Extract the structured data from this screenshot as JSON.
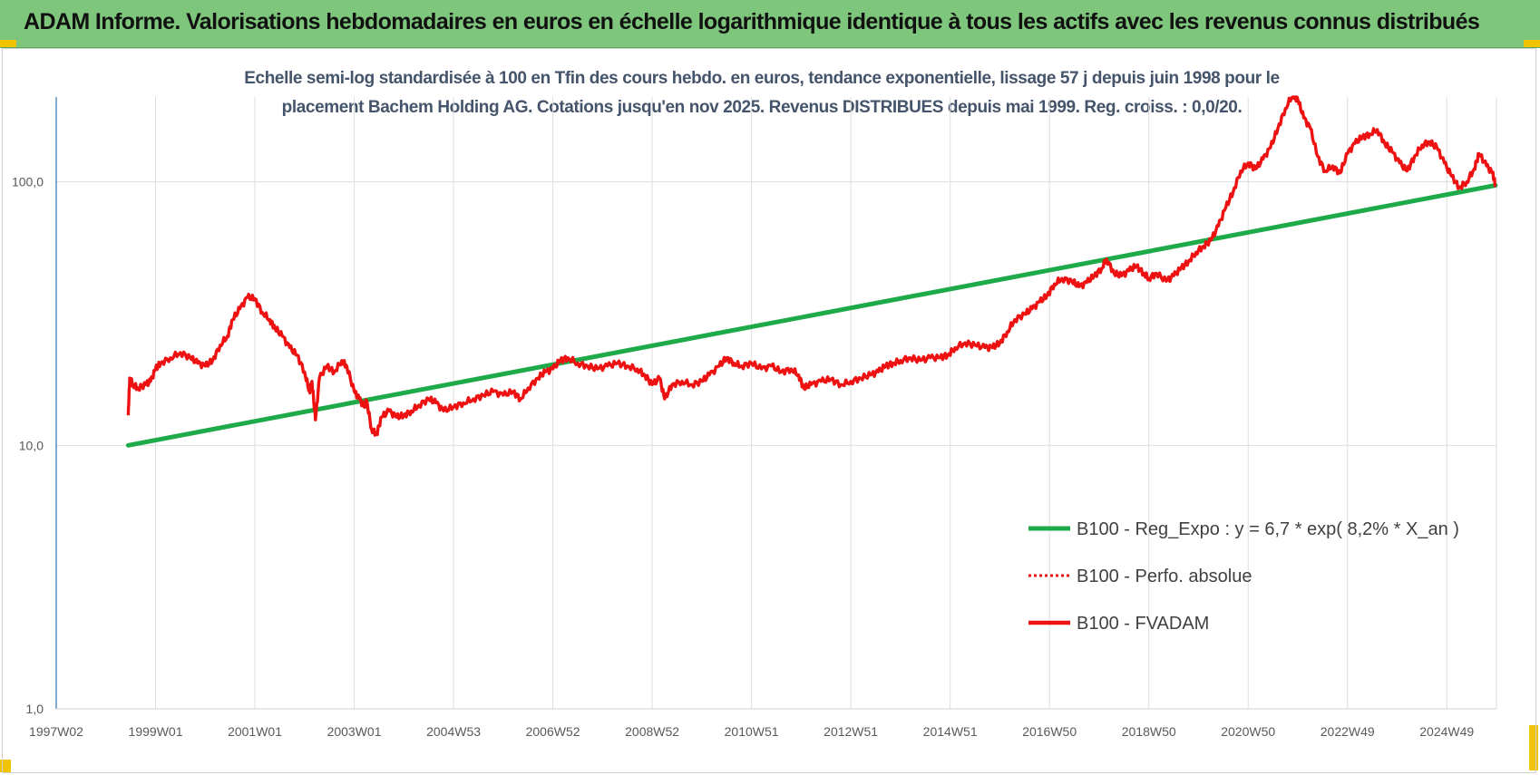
{
  "banner": {
    "title": "ADAM Informe. Valorisations hebdomadaires en euros en échelle logarithmique identique à tous les actifs avec les revenus connus distribués"
  },
  "colors": {
    "banner": "#7dc67b",
    "corner": "#f2c400",
    "trend": "#1faa4a",
    "price": "#ee1111",
    "title_text": "#44546a"
  },
  "chart_data": {
    "type": "line",
    "title_line1": "Echelle semi-log standardisée à 100 en Tfin des cours hebdo. en euros, tendance exponentielle, lissage 57 j depuis juin 1998 pour le",
    "title_line2": "placement Bachem Holding AG. Cotations jusqu'en nov 2025. Revenus DISTRIBUES depuis mai 1999. Reg. croiss. : 0,0/20.",
    "y_scale": "log",
    "ylim": [
      1,
      210
    ],
    "y_ticks": [
      {
        "value": 1,
        "label": "1,0"
      },
      {
        "value": 10,
        "label": "10,0"
      },
      {
        "value": 100,
        "label": "100,0"
      }
    ],
    "x_range": [
      1997.0,
      2026.0
    ],
    "x_ticks": [
      {
        "x": 1997.0,
        "label": "1997W02"
      },
      {
        "x": 1999.0,
        "label": "1999W01"
      },
      {
        "x": 2001.0,
        "label": "2001W01"
      },
      {
        "x": 2003.0,
        "label": "2003W01"
      },
      {
        "x": 2005.0,
        "label": "2004W53"
      },
      {
        "x": 2007.0,
        "label": "2006W52"
      },
      {
        "x": 2009.0,
        "label": "2008W52"
      },
      {
        "x": 2011.0,
        "label": "2010W51"
      },
      {
        "x": 2013.0,
        "label": "2012W51"
      },
      {
        "x": 2015.0,
        "label": "2014W51"
      },
      {
        "x": 2017.0,
        "label": "2016W50"
      },
      {
        "x": 2019.0,
        "label": "2018W50"
      },
      {
        "x": 2021.0,
        "label": "2020W50"
      },
      {
        "x": 2023.0,
        "label": "2022W49"
      },
      {
        "x": 2025.0,
        "label": "2024W49"
      }
    ],
    "grid": true,
    "legend_position": "right-middle",
    "series": [
      {
        "name": "B100 - Reg_Expo : y = 6,7 * exp( 8,2% *  X_an )",
        "style": "solid-thick",
        "color": "#1faa4a",
        "points": [
          [
            1998.45,
            10.0
          ],
          [
            2025.98,
            97.0
          ]
        ]
      },
      {
        "name": "B100 - Perfo. absolue",
        "style": "dotted",
        "color": "#ee1111",
        "points": []
      },
      {
        "name": "B100 - FVADAM",
        "style": "solid",
        "color": "#ee1111",
        "points": [
          [
            1998.45,
            13.0
          ],
          [
            1998.48,
            18.0
          ],
          [
            1998.55,
            17.0
          ],
          [
            1998.65,
            16.5
          ],
          [
            1998.8,
            17.0
          ],
          [
            1998.9,
            17.5
          ],
          [
            1999.0,
            19.5
          ],
          [
            1999.1,
            20.5
          ],
          [
            1999.3,
            21.5
          ],
          [
            1999.5,
            22.5
          ],
          [
            1999.7,
            21.5
          ],
          [
            1999.85,
            20.5
          ],
          [
            2000.0,
            20.0
          ],
          [
            2000.15,
            21.0
          ],
          [
            2000.3,
            24.0
          ],
          [
            2000.45,
            26.0
          ],
          [
            2000.55,
            30.0
          ],
          [
            2000.7,
            33.0
          ],
          [
            2000.85,
            36.5
          ],
          [
            2001.0,
            36.0
          ],
          [
            2001.15,
            32.0
          ],
          [
            2001.3,
            30.0
          ],
          [
            2001.4,
            28.0
          ],
          [
            2001.55,
            26.0
          ],
          [
            2001.7,
            23.5
          ],
          [
            2001.85,
            22.0
          ],
          [
            2002.0,
            19.0
          ],
          [
            2002.1,
            16.0
          ],
          [
            2002.15,
            17.5
          ],
          [
            2002.22,
            12.5
          ],
          [
            2002.3,
            18.0
          ],
          [
            2002.45,
            20.0
          ],
          [
            2002.6,
            19.0
          ],
          [
            2002.75,
            21.0
          ],
          [
            2002.85,
            20.0
          ],
          [
            2003.0,
            16.0
          ],
          [
            2003.1,
            15.0
          ],
          [
            2003.2,
            14.0
          ],
          [
            2003.25,
            14.8
          ],
          [
            2003.35,
            11.5
          ],
          [
            2003.45,
            11.0
          ],
          [
            2003.55,
            12.8
          ],
          [
            2003.7,
            13.5
          ],
          [
            2003.85,
            12.8
          ],
          [
            2004.0,
            13.0
          ],
          [
            2004.15,
            13.5
          ],
          [
            2004.3,
            14.2
          ],
          [
            2004.5,
            15.0
          ],
          [
            2004.65,
            14.5
          ],
          [
            2004.8,
            13.5
          ],
          [
            2005.0,
            14.0
          ],
          [
            2005.2,
            14.5
          ],
          [
            2005.4,
            15.0
          ],
          [
            2005.6,
            15.5
          ],
          [
            2005.8,
            16.0
          ],
          [
            2006.0,
            15.5
          ],
          [
            2006.2,
            16.0
          ],
          [
            2006.35,
            15.0
          ],
          [
            2006.5,
            16.5
          ],
          [
            2006.7,
            18.0
          ],
          [
            2006.85,
            19.0
          ],
          [
            2007.0,
            19.5
          ],
          [
            2007.15,
            21.0
          ],
          [
            2007.3,
            21.5
          ],
          [
            2007.5,
            20.5
          ],
          [
            2007.7,
            20.0
          ],
          [
            2007.9,
            19.5
          ],
          [
            2008.1,
            20.0
          ],
          [
            2008.3,
            20.5
          ],
          [
            2008.5,
            20.0
          ],
          [
            2008.7,
            19.5
          ],
          [
            2008.85,
            18.5
          ],
          [
            2009.0,
            17.0
          ],
          [
            2009.15,
            18.0
          ],
          [
            2009.25,
            15.0
          ],
          [
            2009.4,
            17.0
          ],
          [
            2009.6,
            17.5
          ],
          [
            2009.8,
            17.0
          ],
          [
            2010.0,
            17.5
          ],
          [
            2010.15,
            18.5
          ],
          [
            2010.35,
            20.0
          ],
          [
            2010.5,
            21.5
          ],
          [
            2010.65,
            20.5
          ],
          [
            2010.8,
            20.0
          ],
          [
            2011.0,
            20.5
          ],
          [
            2011.2,
            19.5
          ],
          [
            2011.4,
            20.0
          ],
          [
            2011.6,
            19.0
          ],
          [
            2011.8,
            19.5
          ],
          [
            2011.95,
            18.5
          ],
          [
            2012.05,
            16.5
          ],
          [
            2012.2,
            17.0
          ],
          [
            2012.4,
            17.5
          ],
          [
            2012.6,
            17.8
          ],
          [
            2012.8,
            17.0
          ],
          [
            2013.0,
            17.5
          ],
          [
            2013.2,
            18.0
          ],
          [
            2013.4,
            18.5
          ],
          [
            2013.55,
            19.0
          ],
          [
            2013.7,
            20.0
          ],
          [
            2013.85,
            20.5
          ],
          [
            2014.0,
            21.0
          ],
          [
            2014.2,
            21.5
          ],
          [
            2014.4,
            21.0
          ],
          [
            2014.6,
            21.5
          ],
          [
            2014.8,
            21.5
          ],
          [
            2014.95,
            22.0
          ],
          [
            2015.1,
            23.5
          ],
          [
            2015.3,
            24.5
          ],
          [
            2015.5,
            24.0
          ],
          [
            2015.7,
            23.5
          ],
          [
            2015.85,
            23.5
          ],
          [
            2016.0,
            24.5
          ],
          [
            2016.15,
            27.0
          ],
          [
            2016.3,
            30.0
          ],
          [
            2016.5,
            31.5
          ],
          [
            2016.65,
            33.0
          ],
          [
            2016.8,
            35.0
          ],
          [
            2016.95,
            37.0
          ],
          [
            2017.1,
            41.0
          ],
          [
            2017.25,
            43.0
          ],
          [
            2017.45,
            42.0
          ],
          [
            2017.6,
            40.0
          ],
          [
            2017.75,
            41.5
          ],
          [
            2017.9,
            44.0
          ],
          [
            2018.05,
            47.0
          ],
          [
            2018.15,
            51.0
          ],
          [
            2018.3,
            45.0
          ],
          [
            2018.45,
            44.0
          ],
          [
            2018.6,
            46.0
          ],
          [
            2018.75,
            48.0
          ],
          [
            2018.9,
            45.0
          ],
          [
            2019.0,
            43.0
          ],
          [
            2019.15,
            45.0
          ],
          [
            2019.35,
            42.0
          ],
          [
            2019.5,
            44.0
          ],
          [
            2019.65,
            47.0
          ],
          [
            2019.8,
            50.0
          ],
          [
            2019.95,
            54.0
          ],
          [
            2020.1,
            57.0
          ],
          [
            2020.25,
            60.0
          ],
          [
            2020.4,
            68.0
          ],
          [
            2020.55,
            80.0
          ],
          [
            2020.7,
            92.0
          ],
          [
            2020.85,
            110.0
          ],
          [
            2021.0,
            118.0
          ],
          [
            2021.15,
            112.0
          ],
          [
            2021.3,
            122.0
          ],
          [
            2021.45,
            135.0
          ],
          [
            2021.6,
            160.0
          ],
          [
            2021.75,
            190.0
          ],
          [
            2021.9,
            215.0
          ],
          [
            2022.0,
            205.0
          ],
          [
            2022.12,
            175.0
          ],
          [
            2022.25,
            160.0
          ],
          [
            2022.4,
            125.0
          ],
          [
            2022.55,
            110.0
          ],
          [
            2022.7,
            115.0
          ],
          [
            2022.85,
            108.0
          ],
          [
            2023.0,
            128.0
          ],
          [
            2023.15,
            140.0
          ],
          [
            2023.3,
            148.0
          ],
          [
            2023.45,
            152.0
          ],
          [
            2023.6,
            158.0
          ],
          [
            2023.75,
            140.0
          ],
          [
            2023.9,
            130.0
          ],
          [
            2024.05,
            118.0
          ],
          [
            2024.2,
            110.0
          ],
          [
            2024.35,
            125.0
          ],
          [
            2024.5,
            138.0
          ],
          [
            2024.65,
            142.0
          ],
          [
            2024.8,
            135.0
          ],
          [
            2024.95,
            118.0
          ],
          [
            2025.1,
            105.0
          ],
          [
            2025.25,
            95.0
          ],
          [
            2025.4,
            100.0
          ],
          [
            2025.55,
            112.0
          ],
          [
            2025.65,
            128.0
          ],
          [
            2025.8,
            115.0
          ],
          [
            2025.92,
            108.0
          ],
          [
            2025.98,
            97.0
          ]
        ]
      }
    ]
  }
}
